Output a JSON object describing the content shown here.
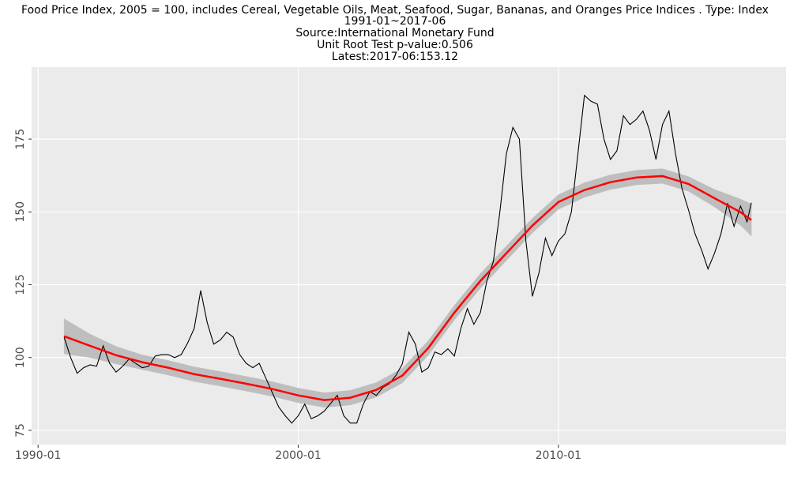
{
  "chart_data": {
    "type": "line",
    "title": "Food Price Index, 2005 = 100, includes Cereal, Vegetable Oils, Meat, Seafood, Sugar, Bananas, and Oranges Price Indices . Type: Index",
    "subtitle": [
      "1991-01~2017-06",
      "Source:International Monetary Fund",
      "Unit Root Test p-value:0.506",
      "Latest:2017-06:153.12"
    ],
    "x": [
      "1991-01",
      "1991-04",
      "1991-07",
      "1991-10",
      "1992-01",
      "1992-04",
      "1992-07",
      "1992-10",
      "1993-01",
      "1993-04",
      "1993-07",
      "1993-10",
      "1994-01",
      "1994-04",
      "1994-07",
      "1994-10",
      "1995-01",
      "1995-04",
      "1995-07",
      "1995-10",
      "1996-01",
      "1996-04",
      "1996-07",
      "1996-10",
      "1997-01",
      "1997-04",
      "1997-07",
      "1997-10",
      "1998-01",
      "1998-04",
      "1998-07",
      "1998-10",
      "1999-01",
      "1999-04",
      "1999-07",
      "1999-10",
      "2000-01",
      "2000-04",
      "2000-07",
      "2000-10",
      "2001-01",
      "2001-04",
      "2001-07",
      "2001-10",
      "2002-01",
      "2002-04",
      "2002-07",
      "2002-10",
      "2003-01",
      "2003-04",
      "2003-07",
      "2003-10",
      "2004-01",
      "2004-04",
      "2004-07",
      "2004-10",
      "2005-01",
      "2005-04",
      "2005-07",
      "2005-10",
      "2006-01",
      "2006-04",
      "2006-07",
      "2006-10",
      "2007-01",
      "2007-04",
      "2007-07",
      "2007-10",
      "2008-01",
      "2008-04",
      "2008-07",
      "2008-10",
      "2009-01",
      "2009-04",
      "2009-07",
      "2009-10",
      "2010-01",
      "2010-04",
      "2010-07",
      "2010-10",
      "2011-01",
      "2011-04",
      "2011-07",
      "2011-10",
      "2012-01",
      "2012-04",
      "2012-07",
      "2012-10",
      "2013-01",
      "2013-04",
      "2013-07",
      "2013-10",
      "2014-01",
      "2014-04",
      "2014-07",
      "2014-10",
      "2015-01",
      "2015-04",
      "2015-07",
      "2015-10",
      "2016-01",
      "2016-04",
      "2016-07",
      "2016-10",
      "2017-01",
      "2017-04",
      "2017-06"
    ],
    "series": [
      {
        "color": "#000000",
        "values": [
          107,
          100,
          94.6,
          96.5,
          97.5,
          97,
          104,
          98,
          95,
          97,
          99.5,
          98,
          96.5,
          97,
          100.5,
          101,
          101,
          100,
          101,
          105,
          110,
          123,
          112,
          104.6,
          106,
          108.7,
          107,
          101,
          98,
          96.5,
          98,
          93,
          88,
          83,
          80,
          77.5,
          80,
          84,
          79,
          80,
          81.6,
          84.3,
          87,
          80,
          77.5,
          77.5,
          84,
          88.3,
          87,
          89.7,
          91,
          93.8,
          97.8,
          108.7,
          104.6,
          95,
          96.5,
          101.9,
          101,
          103,
          100.5,
          110,
          116.8,
          111.4,
          115.4,
          126.3,
          133,
          150,
          170,
          179,
          175,
          140,
          121,
          129,
          141,
          135,
          140,
          142.5,
          150,
          170,
          190,
          188,
          187,
          175,
          168,
          171,
          183,
          180,
          181.8,
          184.6,
          178,
          168,
          180,
          184.6,
          170,
          158,
          150.7,
          142.5,
          137,
          130.4,
          135.8,
          142.5,
          153,
          145,
          152,
          146.6,
          153.12
        ]
      }
    ],
    "smooth": {
      "color": "#ff0000",
      "band_color": "#bebebe",
      "x": [
        "1991-01",
        "1992-01",
        "1993-01",
        "1994-01",
        "1995-01",
        "1996-01",
        "1997-01",
        "1998-01",
        "1999-01",
        "2000-01",
        "2001-01",
        "2002-01",
        "2003-01",
        "2004-01",
        "2005-01",
        "2006-01",
        "2007-01",
        "2008-01",
        "2009-01",
        "2010-01",
        "2011-01",
        "2012-01",
        "2013-01",
        "2014-01",
        "2015-01",
        "2016-01",
        "2017-01",
        "2017-06"
      ],
      "values": [
        107.3,
        104,
        100.8,
        98.4,
        96.5,
        94.3,
        92.7,
        91,
        89.2,
        87,
        85.4,
        86.2,
        88.9,
        93.8,
        103.3,
        115.4,
        126.3,
        135.8,
        145.3,
        153.4,
        157.5,
        160.2,
        161.8,
        162.3,
        159.6,
        154.7,
        149.9,
        147.2
      ],
      "lower": [
        101.3,
        100,
        97.8,
        95.9,
        94,
        91.8,
        90.2,
        88.5,
        86.7,
        84.5,
        82.9,
        83.7,
        86.4,
        91.3,
        100.8,
        112.9,
        123.8,
        133.3,
        142.8,
        150.9,
        155,
        157.7,
        159.3,
        159.8,
        157.1,
        151.7,
        145.4,
        141.7
      ],
      "upper": [
        113.3,
        108,
        103.8,
        100.9,
        99,
        96.8,
        95.2,
        93.5,
        91.7,
        89.5,
        87.9,
        88.7,
        91.4,
        96.3,
        105.8,
        117.9,
        128.8,
        138.3,
        147.8,
        155.9,
        160,
        162.7,
        164.3,
        164.8,
        162.1,
        157.7,
        154.4,
        152.7
      ]
    },
    "xlim": [
      "1989-10",
      "2018-10"
    ],
    "xticks": [
      "1990-01",
      "2000-01",
      "2010-01"
    ],
    "ylim": [
      70.1,
      199.7
    ],
    "yticks": [
      75,
      100,
      125,
      150,
      175
    ],
    "grid": true
  }
}
